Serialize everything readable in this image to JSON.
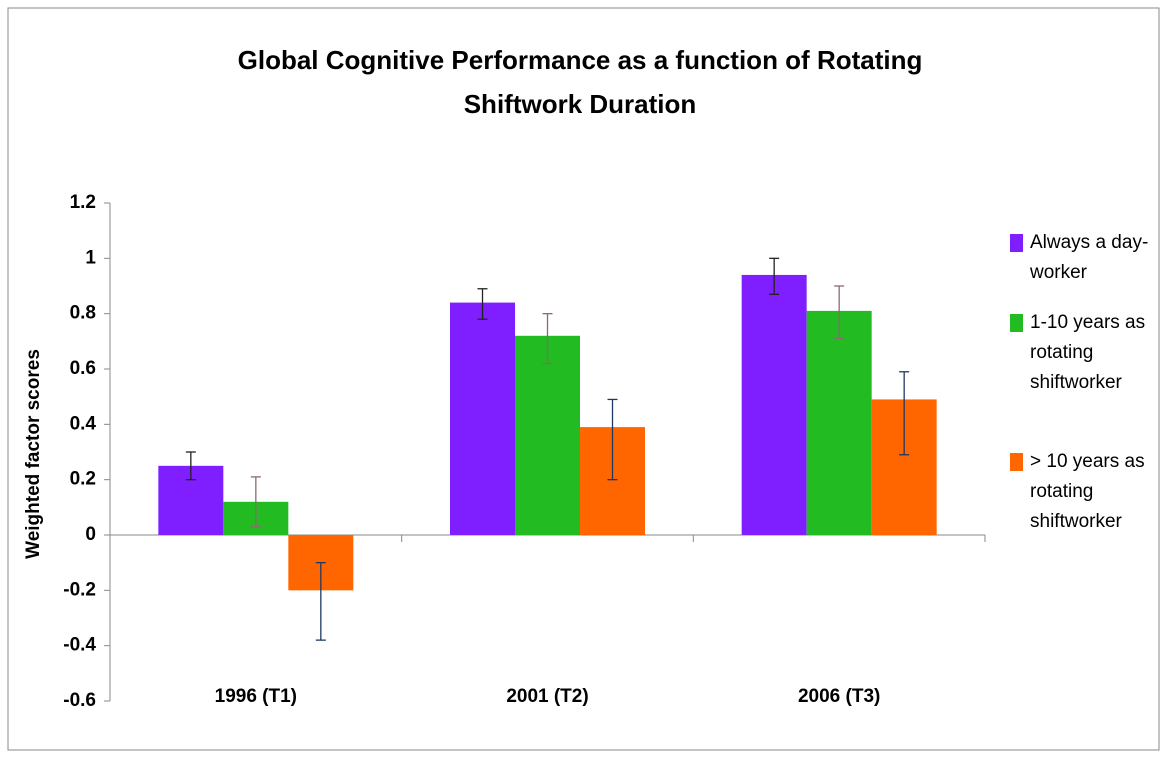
{
  "chart_data": {
    "type": "bar",
    "title": "Global Cognitive Performance as a function of Rotating Shiftwork Duration",
    "y_label": "Weighted factor scores",
    "categories": [
      "1996 (T1)",
      "2001 (T2)",
      "2006 (T3)"
    ],
    "series": [
      {
        "name": "Always a day-worker",
        "color": "#7f1fff",
        "error_color": "#222222",
        "values": [
          0.25,
          0.84,
          0.94
        ],
        "errors_plus": [
          0.05,
          0.05,
          0.06
        ],
        "errors_minus": [
          0.05,
          0.06,
          0.07
        ]
      },
      {
        "name": "1-10 years as rotating shiftworker",
        "color": "#22bb22",
        "error_color": "#8b6b6b",
        "values": [
          0.12,
          0.72,
          0.81
        ],
        "errors_plus": [
          0.09,
          0.08,
          0.09
        ],
        "errors_minus": [
          0.09,
          0.1,
          0.1
        ]
      },
      {
        "name": "> 10 years as rotating shiftworker",
        "color": "#ff6600",
        "error_color": "#1f3864",
        "values": [
          -0.2,
          0.39,
          0.49
        ],
        "errors_plus": [
          0.1,
          0.1,
          0.1
        ],
        "errors_minus": [
          0.18,
          0.19,
          0.2
        ]
      }
    ],
    "ylim": [
      -0.6,
      1.2
    ],
    "yticks": [
      -0.6,
      -0.4,
      -0.2,
      0,
      0.2,
      0.4,
      0.6,
      0.8,
      1,
      1.2
    ],
    "legend": "right"
  }
}
